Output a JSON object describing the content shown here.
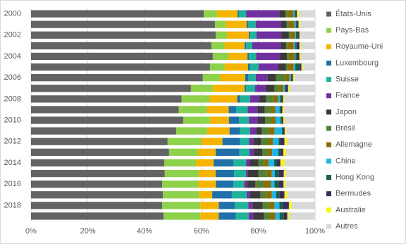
{
  "chart_data": {
    "type": "stacked_bar_horizontal_percent",
    "categories": [
      "2000",
      null,
      "2002",
      null,
      "2004",
      null,
      "2006",
      null,
      "2008",
      null,
      "2010",
      null,
      "2012",
      null,
      "2014",
      null,
      "2016",
      null,
      "2018",
      null
    ],
    "xlim": [
      0,
      100
    ],
    "xticks": [
      {
        "value": 0,
        "label": "0%"
      },
      {
        "value": 20,
        "label": "20%"
      },
      {
        "value": 40,
        "label": "40%"
      },
      {
        "value": 60,
        "label": "60%"
      },
      {
        "value": 80,
        "label": "80%"
      },
      {
        "value": 100,
        "label": "100%"
      }
    ],
    "grid": true,
    "legend": "right",
    "series": [
      {
        "name": "États-Unis",
        "color": "#636363",
        "values": [
          60.8,
          64.8,
          65,
          63.5,
          64,
          63,
          60.5,
          56.3,
          53,
          52,
          53.6,
          51.1,
          48.1,
          48.6,
          46.9,
          47.1,
          46.2,
          46.4,
          46.2,
          46.7
        ]
      },
      {
        "name": "Pays-Bas",
        "color": "#8ed14b",
        "values": [
          4.7,
          3.7,
          4,
          4.7,
          5.5,
          5.2,
          6,
          7.7,
          9.9,
          9.9,
          9.4,
          10.9,
          11.9,
          10.2,
          11.2,
          11.9,
          12.7,
          12.7,
          13.4,
          12.9
        ]
      },
      {
        "name": "Royaume-Uni",
        "color": "#f5b400",
        "values": [
          7.2,
          7.4,
          7.7,
          7,
          6.7,
          8.2,
          8.9,
          11.2,
          9.7,
          7.7,
          6.7,
          7.9,
          7.4,
          6.2,
          6.2,
          6,
          6.2,
          4.7,
          6.5,
          6.5
        ]
      },
      {
        "name": "Luxembourg",
        "color": "#1f6fa8",
        "values": [
          0.5,
          0.7,
          0.5,
          0.5,
          0.5,
          0.7,
          1.2,
          0.5,
          1,
          2.7,
          3.5,
          3.7,
          6.2,
          8.4,
          6.9,
          6.5,
          6.2,
          6.9,
          5.7,
          6
        ]
      },
      {
        "name": "Suisse",
        "color": "#1fb39a",
        "values": [
          2.5,
          2.5,
          2.2,
          2.2,
          2.5,
          3,
          2.5,
          3.2,
          3.5,
          4,
          3.5,
          3.5,
          3.2,
          3.5,
          4.5,
          4.2,
          3.7,
          5.2,
          4.7,
          4.5
        ]
      },
      {
        "name": "France",
        "color": "#7030a0",
        "values": [
          11.7,
          8.9,
          8.7,
          9.9,
          8.4,
          7,
          4.2,
          3.7,
          3.2,
          3.5,
          3.2,
          2.2,
          1.5,
          1.5,
          1.2,
          0.7,
          1,
          1.2,
          1.5,
          1.7
        ]
      },
      {
        "name": "Japon",
        "color": "#3a3a3a",
        "values": [
          2.2,
          2,
          2.7,
          2,
          2.5,
          2.7,
          3,
          3,
          2.5,
          2.5,
          2.5,
          2,
          2.7,
          3,
          3.2,
          3.7,
          3,
          3.7,
          3.5,
          3.7
        ]
      },
      {
        "name": "Brésil",
        "color": "#548235",
        "values": [
          0.5,
          0.7,
          0.5,
          0.5,
          0.7,
          0.7,
          3.2,
          1.7,
          2.5,
          2.2,
          2.2,
          2.5,
          2.5,
          2,
          2,
          3,
          3,
          2,
          2.2,
          2
        ]
      },
      {
        "name": "Allemagne",
        "color": "#8a6d00",
        "values": [
          2.2,
          2,
          1.7,
          2.2,
          2,
          2,
          1.5,
          1.5,
          1.7,
          1.5,
          1.5,
          2,
          1.7,
          1.5,
          1.5,
          1.7,
          2.5,
          2,
          2,
          2
        ]
      },
      {
        "name": "Chine",
        "color": "#1fb5e8",
        "values": [
          0.5,
          0.5,
          0.3,
          0.5,
          0.3,
          0.5,
          0.5,
          0.5,
          0.7,
          1.5,
          1.7,
          2.5,
          2,
          2.2,
          2,
          1,
          1.2,
          1.5,
          1.7,
          1.5
        ]
      },
      {
        "name": "Hong Kong",
        "color": "#1a5e4a",
        "values": [
          0.3,
          0.5,
          0.7,
          0.5,
          0.7,
          1.7,
          0.2,
          0.5,
          0.5,
          0.5,
          0.5,
          0.5,
          0.5,
          0.7,
          1,
          1.5,
          1.5,
          1.2,
          1.2,
          1.5
        ]
      },
      {
        "name": "Bermudes",
        "color": "#3b2a5e",
        "values": [
          0.5,
          0.5,
          0.5,
          1,
          0.7,
          0.5,
          0.5,
          0.7,
          0.5,
          0.5,
          0.5,
          0.5,
          1.5,
          1,
          1.2,
          1.7,
          1.7,
          1.7,
          2.2,
          1.2
        ]
      },
      {
        "name": "Australie",
        "color": "#f5f51a",
        "values": [
          0.7,
          0.5,
          0.3,
          0.5,
          0.5,
          0.5,
          0.5,
          0.5,
          0.5,
          0.5,
          0.5,
          0.5,
          1,
          1,
          1.5,
          0.7,
          0.7,
          1,
          1,
          0.7
        ]
      },
      {
        "name": "Autres",
        "color": "#d9d9d9",
        "values": [
          5.7,
          5.3,
          5.2,
          5,
          5,
          4.3,
          7.3,
          9,
          10.8,
          11,
          10.7,
          10.2,
          9.8,
          10.2,
          10.7,
          10.3,
          10.4,
          9.8,
          8.2,
          9.1
        ]
      }
    ]
  }
}
